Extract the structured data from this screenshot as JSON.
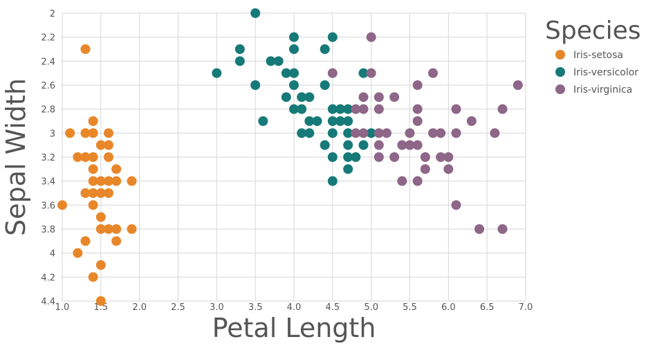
{
  "chart_data": {
    "type": "scatter",
    "xlabel": "Petal Length",
    "ylabel": "Sepal Width",
    "xlim": [
      1.0,
      7.0
    ],
    "ylim": [
      2.0,
      4.4
    ],
    "y_inverted": true,
    "x_ticks": [
      "1.0",
      "1.5",
      "2.0",
      "2.5",
      "3.0",
      "3.5",
      "4.0",
      "4.5",
      "5.0",
      "5.5",
      "6.0",
      "6.5",
      "7.0"
    ],
    "y_ticks": [
      "2",
      "2.2",
      "2.4",
      "2.6",
      "2.8",
      "3",
      "3.2",
      "3.4",
      "3.6",
      "3.8",
      "4",
      "4.2",
      "4.4"
    ],
    "grid": true,
    "legend": {
      "title": "Species",
      "placement": "right"
    },
    "series": [
      {
        "name": "Iris-setosa",
        "color": "#e8872a",
        "points": [
          [
            1.3,
            2.3
          ],
          [
            1.0,
            3.6
          ],
          [
            1.1,
            3.0
          ],
          [
            1.3,
            3.0
          ],
          [
            1.4,
            3.0
          ],
          [
            1.6,
            3.0
          ],
          [
            1.4,
            2.9
          ],
          [
            1.2,
            3.2
          ],
          [
            1.3,
            3.2
          ],
          [
            1.4,
            3.2
          ],
          [
            1.6,
            3.2
          ],
          [
            1.5,
            3.1
          ],
          [
            1.6,
            3.1
          ],
          [
            1.4,
            3.3
          ],
          [
            1.7,
            3.3
          ],
          [
            1.3,
            3.5
          ],
          [
            1.4,
            3.5
          ],
          [
            1.5,
            3.5
          ],
          [
            1.6,
            3.5
          ],
          [
            1.4,
            3.4
          ],
          [
            1.5,
            3.4
          ],
          [
            1.6,
            3.4
          ],
          [
            1.7,
            3.4
          ],
          [
            1.9,
            3.4
          ],
          [
            1.4,
            3.6
          ],
          [
            1.5,
            3.7
          ],
          [
            1.5,
            3.8
          ],
          [
            1.6,
            3.8
          ],
          [
            1.7,
            3.8
          ],
          [
            1.9,
            3.8
          ],
          [
            1.3,
            3.9
          ],
          [
            1.7,
            3.9
          ],
          [
            1.2,
            4.0
          ],
          [
            1.5,
            4.1
          ],
          [
            1.4,
            4.2
          ],
          [
            1.5,
            4.4
          ]
        ]
      },
      {
        "name": "Iris-versicolor",
        "color": "#167a78",
        "points": [
          [
            3.5,
            2.0
          ],
          [
            4.0,
            2.2
          ],
          [
            4.5,
            2.2
          ],
          [
            3.3,
            2.3
          ],
          [
            4.0,
            2.3
          ],
          [
            4.4,
            2.3
          ],
          [
            3.3,
            2.4
          ],
          [
            3.7,
            2.4
          ],
          [
            3.8,
            2.4
          ],
          [
            3.0,
            2.5
          ],
          [
            3.9,
            2.5
          ],
          [
            4.0,
            2.5
          ],
          [
            4.9,
            2.5
          ],
          [
            3.5,
            2.6
          ],
          [
            4.0,
            2.6
          ],
          [
            4.4,
            2.6
          ],
          [
            3.9,
            2.7
          ],
          [
            4.1,
            2.7
          ],
          [
            4.2,
            2.7
          ],
          [
            4.0,
            2.8
          ],
          [
            4.1,
            2.8
          ],
          [
            4.5,
            2.8
          ],
          [
            4.6,
            2.8
          ],
          [
            4.7,
            2.8
          ],
          [
            3.6,
            2.9
          ],
          [
            4.2,
            2.9
          ],
          [
            4.3,
            2.9
          ],
          [
            4.5,
            2.9
          ],
          [
            4.6,
            2.9
          ],
          [
            4.7,
            2.9
          ],
          [
            4.1,
            3.0
          ],
          [
            4.2,
            3.0
          ],
          [
            4.5,
            3.0
          ],
          [
            4.7,
            3.0
          ],
          [
            5.0,
            3.0
          ],
          [
            4.4,
            3.1
          ],
          [
            4.7,
            3.1
          ],
          [
            4.9,
            3.1
          ],
          [
            4.5,
            3.2
          ],
          [
            4.7,
            3.2
          ],
          [
            4.8,
            3.2
          ],
          [
            4.7,
            3.3
          ],
          [
            4.5,
            3.4
          ]
        ]
      },
      {
        "name": "Iris-virginica",
        "color": "#8d6688",
        "points": [
          [
            5.0,
            2.2
          ],
          [
            4.5,
            2.5
          ],
          [
            5.0,
            2.5
          ],
          [
            5.8,
            2.5
          ],
          [
            5.6,
            2.6
          ],
          [
            6.9,
            2.6
          ],
          [
            4.9,
            2.7
          ],
          [
            5.1,
            2.7
          ],
          [
            5.3,
            2.7
          ],
          [
            4.8,
            2.8
          ],
          [
            4.9,
            2.8
          ],
          [
            5.1,
            2.8
          ],
          [
            5.6,
            2.8
          ],
          [
            6.1,
            2.8
          ],
          [
            6.7,
            2.8
          ],
          [
            5.6,
            2.9
          ],
          [
            6.3,
            2.9
          ],
          [
            4.8,
            3.0
          ],
          [
            4.9,
            3.0
          ],
          [
            5.1,
            3.0
          ],
          [
            5.2,
            3.0
          ],
          [
            5.5,
            3.0
          ],
          [
            5.8,
            3.0
          ],
          [
            5.9,
            3.0
          ],
          [
            6.1,
            3.0
          ],
          [
            6.6,
            3.0
          ],
          [
            5.1,
            3.1
          ],
          [
            5.4,
            3.1
          ],
          [
            5.5,
            3.1
          ],
          [
            5.6,
            3.1
          ],
          [
            5.1,
            3.2
          ],
          [
            5.3,
            3.2
          ],
          [
            5.7,
            3.2
          ],
          [
            5.9,
            3.2
          ],
          [
            6.0,
            3.2
          ],
          [
            5.7,
            3.3
          ],
          [
            6.0,
            3.3
          ],
          [
            5.4,
            3.4
          ],
          [
            5.6,
            3.4
          ],
          [
            6.1,
            3.6
          ],
          [
            6.4,
            3.8
          ],
          [
            6.7,
            3.8
          ]
        ]
      }
    ]
  }
}
